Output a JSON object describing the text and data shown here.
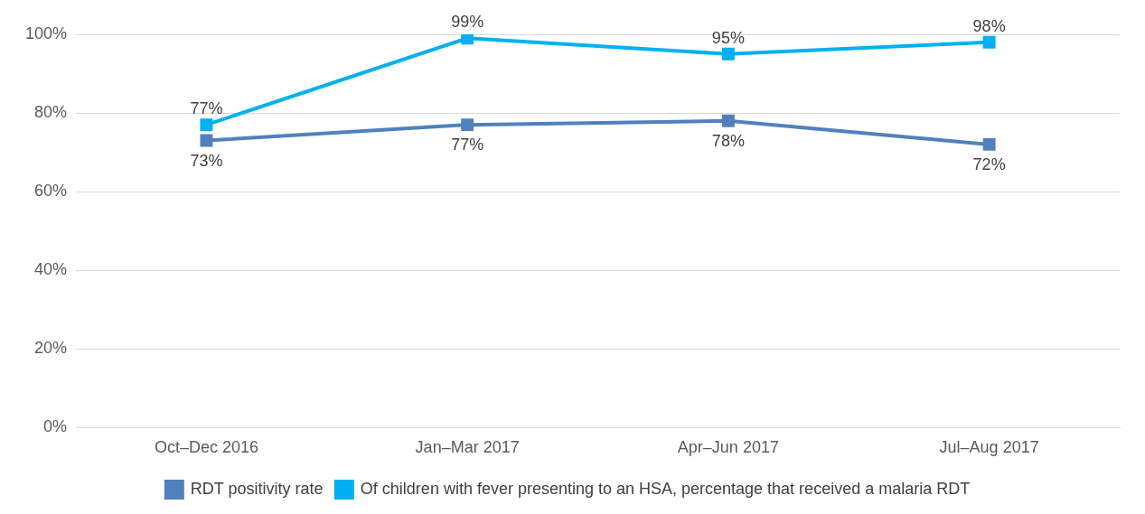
{
  "chart_data": {
    "type": "line",
    "categories": [
      "Oct–Dec 2016",
      "Jan–Mar 2017",
      "Apr–Jun 2017",
      "Jul–Aug 2017"
    ],
    "series": [
      {
        "name": "RDT positivity rate",
        "color": "#4f81bd",
        "values": [
          73,
          77,
          78,
          72
        ],
        "value_labels": [
          "73%",
          "77%",
          "78%",
          "72%"
        ]
      },
      {
        "name": "Of children with fever presenting to an HSA, percentage that received a malaria RDT",
        "color": "#00b0f0",
        "values": [
          77,
          99,
          95,
          98
        ],
        "value_labels": [
          "77%",
          "99%",
          "95%",
          "98%"
        ]
      }
    ],
    "ylim": [
      0,
      100
    ],
    "yticks": [
      {
        "value": 0,
        "label": "0%"
      },
      {
        "value": 20,
        "label": "20%"
      },
      {
        "value": 40,
        "label": "40%"
      },
      {
        "value": 60,
        "label": "60%"
      },
      {
        "value": 80,
        "label": "80%"
      },
      {
        "value": 100,
        "label": "100%"
      }
    ],
    "grid": "y",
    "legend": "bottom",
    "marker": "square",
    "line_style": "solid"
  }
}
